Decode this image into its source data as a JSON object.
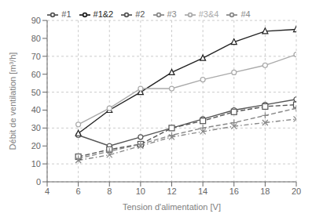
{
  "chart_data": {
    "type": "line",
    "x": [
      6,
      8,
      10,
      12,
      14,
      16,
      18,
      20
    ],
    "series": [
      {
        "name": "#1",
        "color": "#555555",
        "marker": "circle",
        "line_style": "solid",
        "values": [
          26,
          20,
          25,
          30,
          35,
          40,
          43,
          46
        ]
      },
      {
        "name": "#2",
        "color": "#555555",
        "marker": "square",
        "line_style": "dashed",
        "values": [
          14,
          18,
          21,
          30,
          34,
          39,
          42,
          43
        ]
      },
      {
        "name": "#1&2",
        "color": "#222222",
        "marker": "triangle",
        "line_style": "solid",
        "values": [
          27,
          40,
          50,
          61,
          69,
          78,
          84,
          85
        ]
      },
      {
        "name": "#3",
        "color": "#888888",
        "marker": "cross",
        "line_style": "dashdot",
        "values": [
          12,
          15,
          20,
          25,
          28,
          31,
          33,
          35
        ]
      },
      {
        "name": "#4",
        "color": "#888888",
        "marker": "plus",
        "line_style": "dashed",
        "values": [
          13,
          17,
          21,
          26,
          30,
          33,
          37,
          41
        ]
      },
      {
        "name": "#3&4",
        "color": "#aaaaaa",
        "marker": "circle",
        "line_style": "solid",
        "values": [
          32,
          41,
          52,
          52,
          57,
          61,
          65,
          71
        ]
      }
    ],
    "xlabel": "Tension d'alimentation [V]",
    "ylabel": "Débit de ventilation [m³/h]",
    "xlim": [
      4,
      20
    ],
    "ylim": [
      0,
      90
    ],
    "xticks": [
      4,
      6,
      8,
      10,
      12,
      14,
      16,
      18,
      20
    ],
    "yticks": [
      0,
      10,
      20,
      30,
      40,
      50,
      60,
      70,
      80,
      90
    ],
    "grid": true,
    "legend": "top"
  }
}
